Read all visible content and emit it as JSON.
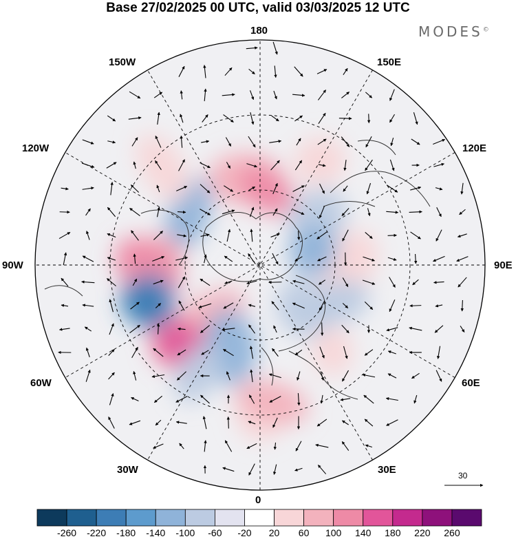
{
  "title": "Base 27/02/2025 00 UTC, valid 03/03/2025 12 UTC",
  "brand": {
    "name": "MODES",
    "mark": "©"
  },
  "longitude_labels": {
    "lon_180": "180",
    "lon_150w": "150W",
    "lon_150e": "150E",
    "lon_120w": "120W",
    "lon_120e": "120E",
    "lon_90w": "90W",
    "lon_90e": "90E",
    "lon_60w": "60W",
    "lon_60e": "60E",
    "lon_30w": "30W",
    "lon_30e": "30E",
    "lon_0": "0"
  },
  "reference_vector": {
    "value": "30"
  },
  "colorbar": {
    "colors": [
      "#0d3a5c",
      "#1f5f8f",
      "#3d7db5",
      "#5d9bcd",
      "#8fb3d9",
      "#bccbe2",
      "#e3e3f0",
      "#ffffff",
      "#f8d6d8",
      "#f3b2bd",
      "#ee8aa6",
      "#e2559a",
      "#c42a8e",
      "#8e117b",
      "#5a0a6e"
    ],
    "labels": [
      "-260",
      "-220",
      "-180",
      "-140",
      "-100",
      "-60",
      "-20",
      "20",
      "60",
      "100",
      "140",
      "180",
      "220",
      "260"
    ]
  },
  "anomaly_blobs": [
    {
      "color": "#f3b2bd",
      "lon": -170,
      "lat": 55
    },
    {
      "color": "#ee8aa6",
      "lon": 175,
      "lat": 60
    },
    {
      "color": "#f8d6d8",
      "lon": 150,
      "lat": 42
    },
    {
      "color": "#8fb3d9",
      "lon": -125,
      "lat": 55
    },
    {
      "color": "#bccbe2",
      "lon": 130,
      "lat": 60
    },
    {
      "color": "#f3b2bd",
      "lon": -95,
      "lat": 50
    },
    {
      "color": "#ee8aa6",
      "lon": -88,
      "lat": 45
    },
    {
      "color": "#5d9bcd",
      "lon": -70,
      "lat": 45
    },
    {
      "color": "#3d7db5",
      "lon": -72,
      "lat": 42
    },
    {
      "color": "#f3b2bd",
      "lon": -45,
      "lat": 62
    },
    {
      "color": "#ee8aa6",
      "lon": -45,
      "lat": 45
    },
    {
      "color": "#e2559a",
      "lon": -45,
      "lat": 45
    },
    {
      "color": "#8fb3d9",
      "lon": -20,
      "lat": 55
    },
    {
      "color": "#bccbe2",
      "lon": -30,
      "lat": 40
    },
    {
      "color": "#f8d6d8",
      "lon": 0,
      "lat": 30
    },
    {
      "color": "#f3b2bd",
      "lon": 5,
      "lat": 35
    },
    {
      "color": "#bccbe2",
      "lon": 45,
      "lat": 65
    },
    {
      "color": "#f8d6d8",
      "lon": 40,
      "lat": 45
    },
    {
      "color": "#f8d6d8",
      "lon": 90,
      "lat": 55
    },
    {
      "color": "#bccbe2",
      "lon": 65,
      "lat": 55
    },
    {
      "color": "#8fb3d9",
      "lon": 105,
      "lat": 68
    },
    {
      "color": "#f8d6d8",
      "lon": -135,
      "lat": 35
    }
  ]
}
